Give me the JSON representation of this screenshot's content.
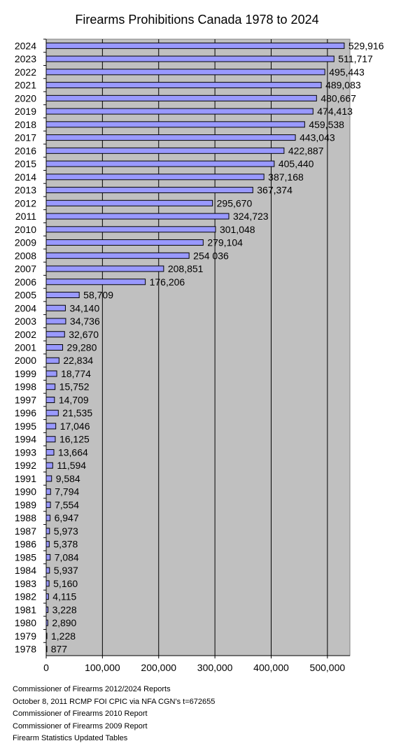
{
  "chart_data": {
    "type": "bar",
    "orientation": "horizontal",
    "title": "Firearms Prohibitions Canada 1978 to 2024",
    "xlabel": "",
    "ylabel": "",
    "xlim": [
      0,
      540000
    ],
    "x_ticks": [
      0,
      100000,
      200000,
      300000,
      400000,
      500000
    ],
    "x_tick_labels": [
      "0",
      "100,000",
      "200,000",
      "300,000",
      "400,000",
      "500,000"
    ],
    "grid": "vertical",
    "legend": "none",
    "colors": {
      "bar_fill": "#9999ff",
      "bar_stroke": "#000000",
      "plot_background": "#c0c0c0",
      "gridline": "#000000"
    },
    "categories": [
      "2024",
      "2023",
      "2022",
      "2021",
      "2020",
      "2019",
      "2018",
      "2017",
      "2016",
      "2015",
      "2014",
      "2013",
      "2012",
      "2011",
      "2010",
      "2009",
      "2008",
      "2007",
      "2006",
      "2005",
      "2004",
      "2003",
      "2002",
      "2001",
      "2000",
      "1999",
      "1998",
      "1997",
      "1996",
      "1995",
      "1994",
      "1993",
      "1992",
      "1991",
      "1990",
      "1989",
      "1988",
      "1987",
      "1986",
      "1985",
      "1984",
      "1983",
      "1982",
      "1981",
      "1980",
      "1979",
      "1978"
    ],
    "values": [
      529916,
      511717,
      495443,
      489083,
      480667,
      474413,
      459538,
      443043,
      422887,
      405440,
      387168,
      367374,
      295670,
      324723,
      301048,
      279104,
      254036,
      208851,
      176206,
      58709,
      34140,
      34736,
      32670,
      29280,
      22834,
      18774,
      15752,
      14709,
      21535,
      17046,
      16125,
      13664,
      11594,
      9584,
      7794,
      7554,
      6947,
      5973,
      5378,
      7084,
      5937,
      5160,
      4115,
      3228,
      2890,
      1228,
      877
    ],
    "value_labels": [
      "529,916",
      "511,717",
      "495,443",
      "489,083",
      "480,667",
      "474,413",
      "459,538",
      "443,043",
      "422,887",
      "405,440",
      "387,168",
      "367,374",
      "295,670",
      "324,723",
      "301,048",
      "279,104",
      "254 036",
      "208,851",
      "176,206",
      "58,709",
      "34,140",
      "34,736",
      "32,670",
      "29,280",
      "22,834",
      "18,774",
      "15,752",
      "14,709",
      "21,535",
      "17,046",
      "16,125",
      "13,664",
      "11,594",
      "9,584",
      "7,794",
      "7,554",
      "6,947",
      "5,973",
      "5,378",
      "7,084",
      "5,937",
      "5,160",
      "4,115",
      "3,228",
      "2,890",
      "1,228",
      "877"
    ]
  },
  "sources": [
    "Commissioner of Firearms 2012/2024 Reports",
    "October 8, 2011  RCMP FOI CPIC via NFA CGN's t=672655",
    "Commissioner of Firearms 2010 Report",
    "Commissioner of Firearms 2009 Report",
    "Firearm Statistics Updated Tables"
  ]
}
